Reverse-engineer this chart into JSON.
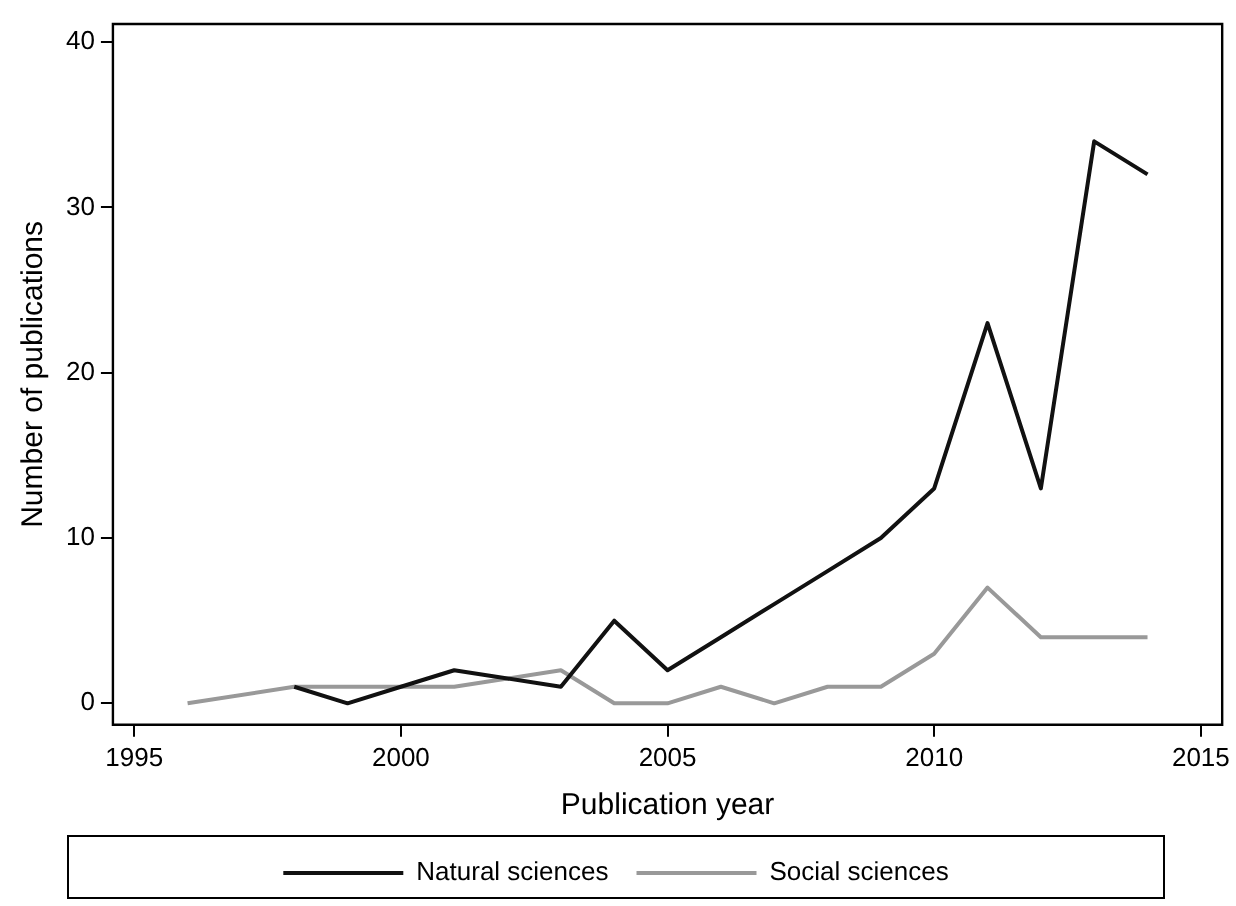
{
  "chart_data": {
    "type": "line",
    "xlabel": "Publication year",
    "ylabel": "Number of publications",
    "xlim": [
      1994.6,
      2015.4
    ],
    "xticks": [
      1995,
      2000,
      2005,
      2010,
      2015
    ],
    "ylim": [
      -1.3,
      41.1
    ],
    "yticks": [
      0,
      10,
      20,
      30,
      40
    ],
    "grid": false,
    "legend": "bottom",
    "marker": "none",
    "line_style": "solid",
    "series": [
      {
        "name": "Natural sciences",
        "color": "#111111",
        "x": [
          1998,
          1999,
          2000,
          2001,
          2002,
          2003,
          2004,
          2005,
          2006,
          2007,
          2008,
          2009,
          2010,
          2011,
          2012,
          2013,
          2014
        ],
        "values": [
          1,
          0,
          1,
          2,
          1.5,
          1,
          5,
          2,
          4,
          6,
          8,
          10,
          13,
          23,
          13,
          34,
          32
        ]
      },
      {
        "name": "Social sciences",
        "color": "#999999",
        "x": [
          1996,
          1998,
          1999,
          2000,
          2001,
          2002,
          2003,
          2004,
          2005,
          2006,
          2007,
          2008,
          2009,
          2010,
          2011,
          2012,
          2013,
          2014
        ],
        "values": [
          0,
          1,
          1,
          1,
          1,
          1.5,
          2,
          0,
          0,
          1,
          0,
          1,
          1,
          3,
          7,
          4,
          4,
          4
        ]
      }
    ]
  }
}
